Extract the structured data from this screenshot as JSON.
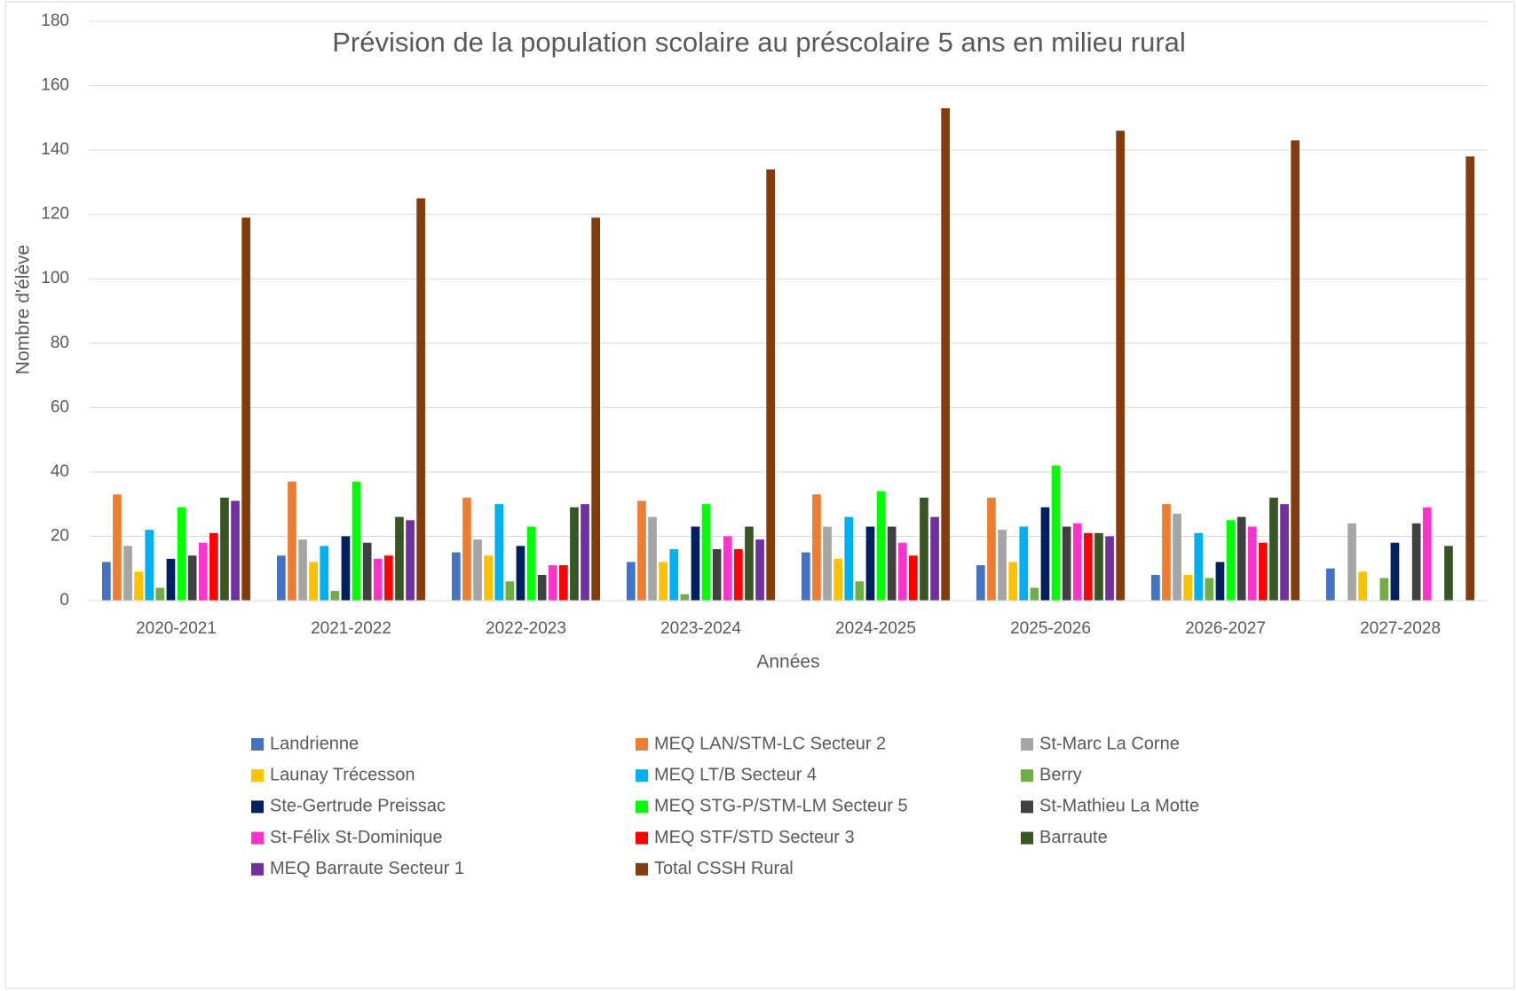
{
  "chart_data": {
    "type": "bar",
    "title": "Prévision de la population scolaire au préscolaire 5 ans en milieu rural",
    "xlabel": "Années",
    "ylabel": "Nombre d'élève",
    "categories": [
      "2020-2021",
      "2021-2022",
      "2022-2023",
      "2023-2024",
      "2024-2025",
      "2025-2026",
      "2026-2027",
      "2027-2028"
    ],
    "ylim": [
      0,
      180
    ],
    "yticks": [
      0,
      20,
      40,
      60,
      80,
      100,
      120,
      140,
      160,
      180
    ],
    "grid": true,
    "legend": "bottom",
    "series": [
      {
        "name": "Landrienne",
        "color": "#4472c4",
        "values": [
          12,
          14,
          15,
          12,
          15,
          11,
          8,
          10
        ]
      },
      {
        "name": "MEQ LAN/STM-LC Secteur 2",
        "color": "#ed7d31",
        "values": [
          33,
          37,
          32,
          31,
          33,
          32,
          30,
          null
        ]
      },
      {
        "name": "St-Marc La Corne",
        "color": "#a5a5a5",
        "values": [
          17,
          19,
          19,
          26,
          23,
          22,
          27,
          24
        ]
      },
      {
        "name": "Launay Trécesson",
        "color": "#ffc000",
        "values": [
          9,
          12,
          14,
          12,
          13,
          12,
          8,
          9
        ]
      },
      {
        "name": "MEQ LT/B Secteur 4",
        "color": "#00b0f0",
        "values": [
          22,
          17,
          30,
          16,
          26,
          23,
          21,
          null
        ]
      },
      {
        "name": "Berry",
        "color": "#70ad47",
        "values": [
          4,
          3,
          6,
          2,
          6,
          4,
          7,
          7
        ]
      },
      {
        "name": "Ste-Gertrude Preissac",
        "color": "#002060",
        "values": [
          13,
          20,
          17,
          23,
          23,
          29,
          12,
          18
        ]
      },
      {
        "name": "MEQ STG-P/STM-LM Secteur 5",
        "color": "#00ff00",
        "values": [
          29,
          37,
          23,
          30,
          34,
          42,
          25,
          null
        ]
      },
      {
        "name": "St-Mathieu La Motte",
        "color": "#404040",
        "values": [
          14,
          18,
          8,
          16,
          23,
          23,
          26,
          24
        ]
      },
      {
        "name": "St-Félix St-Dominique",
        "color": "#ff33cc",
        "values": [
          18,
          13,
          11,
          20,
          18,
          24,
          23,
          29
        ]
      },
      {
        "name": "MEQ STF/STD Secteur 3",
        "color": "#ff0000",
        "values": [
          21,
          14,
          11,
          16,
          14,
          21,
          18,
          null
        ]
      },
      {
        "name": "Barraute",
        "color": "#375623",
        "values": [
          32,
          26,
          29,
          23,
          32,
          21,
          32,
          17
        ]
      },
      {
        "name": "MEQ Barraute Secteur 1",
        "color": "#7030a0",
        "values": [
          31,
          25,
          30,
          19,
          26,
          20,
          30,
          null
        ]
      },
      {
        "name": "Total CSSH Rural",
        "color": "#843c0c",
        "values": [
          119,
          125,
          119,
          134,
          153,
          146,
          143,
          138
        ]
      }
    ]
  }
}
